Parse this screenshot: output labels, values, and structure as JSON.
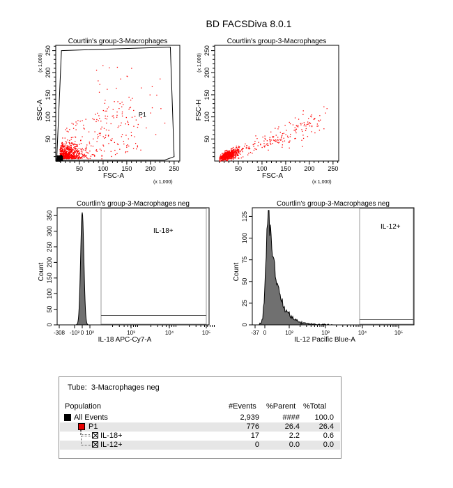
{
  "header": {
    "title": "BD FACSDiva 8.0.1"
  },
  "chart_data": [
    {
      "type": "scatter",
      "title": "Courtlin's group-3-Macrophages",
      "xlabel": "FSC-A",
      "ylabel": "SSC-A",
      "x_multiplier": "(x 1,000)",
      "y_multiplier": "(x 1,000)",
      "xlim": [
        0,
        262
      ],
      "ylim": [
        0,
        262
      ],
      "x_ticks": [
        "50",
        "100",
        "150",
        "200",
        "250"
      ],
      "y_ticks": [
        "50",
        "100",
        "150",
        "200",
        "250"
      ],
      "gates": [
        {
          "name": "P1",
          "label_at": [
            175,
            100
          ]
        }
      ],
      "colors": {
        "p1": "#ff0000",
        "outside": "#000000"
      }
    },
    {
      "type": "scatter",
      "title": "Courtlin's group-3-Macrophages",
      "xlabel": "FSC-A",
      "ylabel": "FSC-H",
      "x_multiplier": "(x 1,000)",
      "y_multiplier": "(x 1,000)",
      "xlim": [
        0,
        262
      ],
      "ylim": [
        0,
        262
      ],
      "x_ticks": [
        "50",
        "100",
        "150",
        "200",
        "250"
      ],
      "y_ticks": [
        "50",
        "100",
        "150",
        "200",
        "250"
      ]
    },
    {
      "type": "histogram",
      "title": "Courtlin's group-3-Macrophages neg",
      "xlabel": "IL-18 APC-Cy7-A",
      "ylabel": "Count",
      "ylim": [
        0,
        375
      ],
      "y_ticks": [
        "0",
        "50",
        "100",
        "150",
        "200",
        "250",
        "300",
        "350"
      ],
      "x_ticks": [
        "-308",
        "-10²",
        "0",
        "10²",
        "10³",
        "10⁴",
        "10⁵"
      ],
      "gates": [
        {
          "name": "IL-18+"
        }
      ],
      "peak_count": 360
    },
    {
      "type": "histogram",
      "title": "Courtlin's group-3-Macrophages neg",
      "xlabel": "IL-12 Pacific Blue-A",
      "ylabel": "Count",
      "ylim": [
        0,
        135
      ],
      "y_ticks": [
        "0",
        "25",
        "50",
        "75",
        "100",
        "125"
      ],
      "x_ticks": [
        "-37",
        "0",
        "10²",
        "10³",
        "10⁴",
        "10⁵"
      ],
      "gates": [
        {
          "name": "IL-12+"
        }
      ],
      "peak_count": 130
    }
  ],
  "stats": {
    "tube_label": "Tube:",
    "tube_name": "3-Macrophages neg",
    "headers": [
      "Population",
      "#Events",
      "%Parent",
      "%Total"
    ],
    "rows": [
      {
        "name": "All Events",
        "events": "2,939",
        "parent": "####",
        "total": "100.0",
        "marker": "#000000"
      },
      {
        "name": "P1",
        "events": "776",
        "parent": "26.4",
        "total": "26.4",
        "marker": "#e60000"
      },
      {
        "name": "IL-18+",
        "events": "17",
        "parent": "2.2",
        "total": "0.6",
        "marker": "hist-gate"
      },
      {
        "name": "IL-12+",
        "events": "0",
        "parent": "0.0",
        "total": "0.0",
        "marker": "hist-gate"
      }
    ]
  }
}
